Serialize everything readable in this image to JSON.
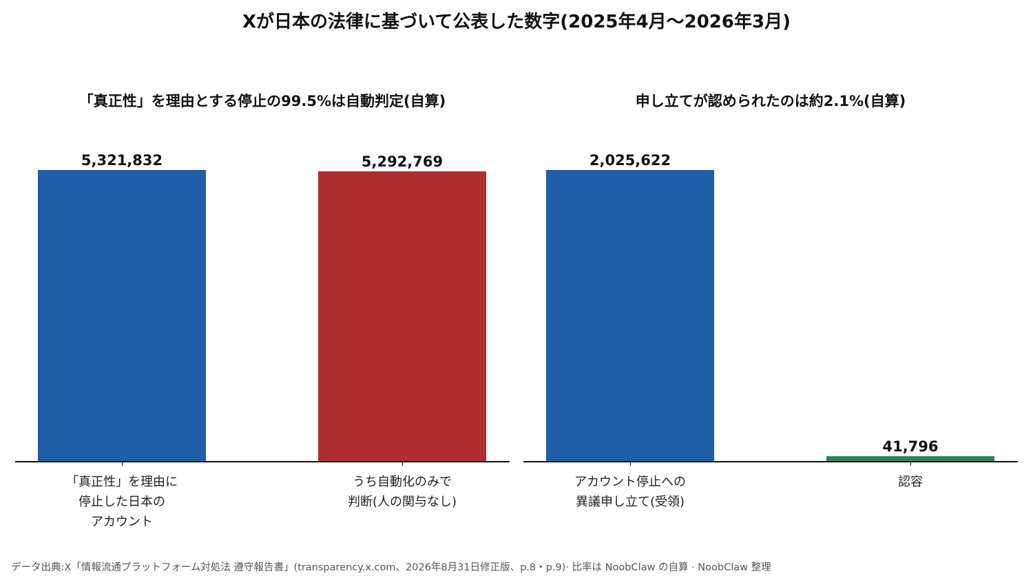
{
  "title": "Xが日本の法律に基づいて公表した数字(2025年4月～2026年3月)",
  "footer": "データ出典:X「情報流通プラットフォーム対処法 遵守報告書」(transparency.x.com、2026年8月31日修正版、p.8・p.9)· 比率は NoobClaw の自算 · NoobClaw 整理",
  "chart_data": [
    {
      "type": "bar",
      "title": "「真正性」を理由とする停止の99.5%は自動判定(自算)",
      "categories": [
        "「真正性」を理由に\n停止した日本の\nアカウント",
        "うち自動化のみで\n判断(人の関与なし)"
      ],
      "values": [
        5321832,
        5292769
      ],
      "value_labels": [
        "5,321,832",
        "5,292,769"
      ],
      "colors": [
        "#1f5fa8",
        "#ae2f30"
      ],
      "ylim": [
        0,
        5321832
      ],
      "grid": false
    },
    {
      "type": "bar",
      "title": "申し立てが認められたのは約2.1%(自算)",
      "categories": [
        "アカウント停止への\n異議申し立て(受領)",
        "認容"
      ],
      "values": [
        2025622,
        41796
      ],
      "value_labels": [
        "2,025,622",
        "41,796"
      ],
      "colors": [
        "#1f5fa8",
        "#2e8352"
      ],
      "ylim": [
        0,
        2025622
      ],
      "grid": false
    }
  ]
}
